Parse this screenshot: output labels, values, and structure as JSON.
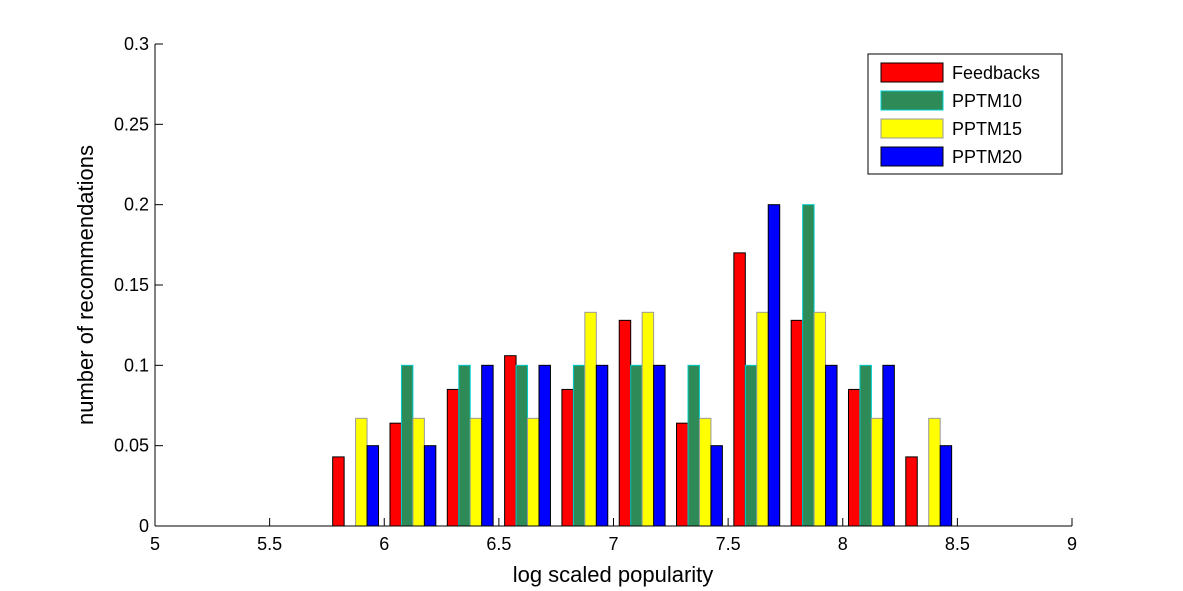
{
  "chart_data": {
    "type": "bar",
    "title": "",
    "xlabel": "log scaled popularity",
    "ylabel": "number of recommendations",
    "xlim": [
      5,
      9
    ],
    "ylim": [
      0,
      0.3
    ],
    "x_ticks": [
      "5",
      "5.5",
      "6",
      "6.5",
      "7",
      "7.5",
      "8",
      "8.5",
      "9"
    ],
    "y_ticks": [
      "0",
      "0.05",
      "0.1",
      "0.15",
      "0.2",
      "0.25",
      "0.3"
    ],
    "grid": false,
    "legend_position": "top-right",
    "x": [
      5.125,
      5.375,
      5.625,
      5.875,
      6.125,
      6.375,
      6.625,
      6.875,
      7.125,
      7.375,
      7.625,
      7.875,
      8.125,
      8.375,
      8.625,
      8.875
    ],
    "series": [
      {
        "name": "Feedbacks",
        "color": "#ff0000",
        "edge": "#000000",
        "values": [
          0,
          0,
          0,
          0.043,
          0.064,
          0.085,
          0.106,
          0.085,
          0.128,
          0.064,
          0.17,
          0.128,
          0.085,
          0.043,
          0,
          0
        ]
      },
      {
        "name": "PPTM10",
        "color": "#2e8b57",
        "edge": "#00cccc",
        "values": [
          0,
          0,
          0,
          0,
          0.1,
          0.1,
          0.1,
          0.1,
          0.1,
          0.1,
          0.1,
          0.2,
          0.1,
          0,
          0,
          0
        ]
      },
      {
        "name": "PPTM15",
        "color": "#ffff00",
        "edge": "#999999",
        "values": [
          0,
          0,
          0,
          0.067,
          0.067,
          0.067,
          0.067,
          0.133,
          0.133,
          0.067,
          0.133,
          0.133,
          0.067,
          0.067,
          0,
          0
        ]
      },
      {
        "name": "PPTM20",
        "color": "#0000ff",
        "edge": "#000000",
        "values": [
          0,
          0,
          0,
          0.05,
          0.05,
          0.1,
          0.1,
          0.1,
          0.1,
          0.05,
          0.2,
          0.1,
          0.1,
          0.05,
          0,
          0
        ]
      }
    ]
  }
}
